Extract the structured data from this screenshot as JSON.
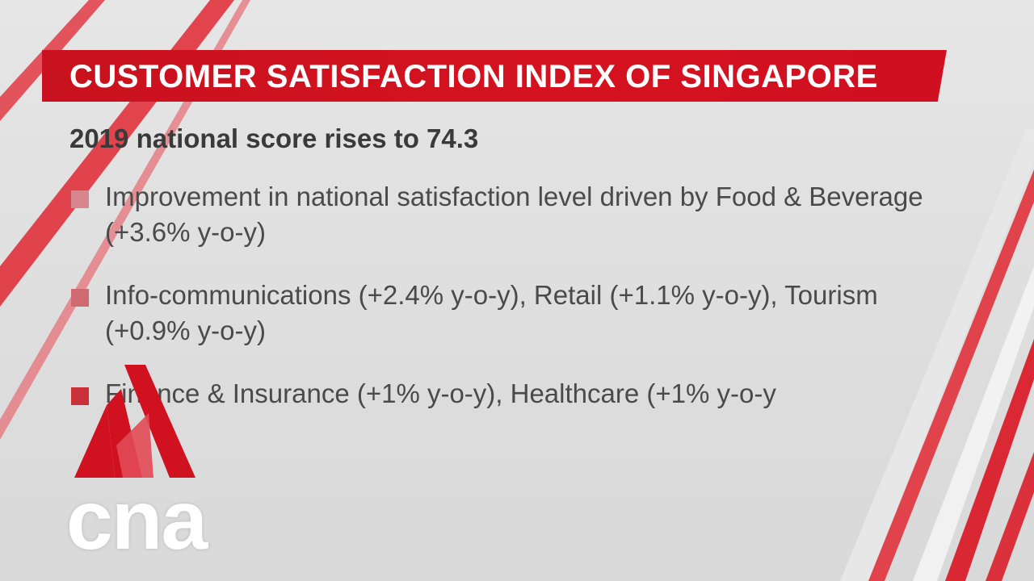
{
  "title": "CUSTOMER SATISFACTION INDEX OF SINGAPORE",
  "subtitle": "2019 national score rises to 74.3",
  "bullets": [
    {
      "text": "Improvement in national satisfaction level driven by Food & Beverage (+3.6% y-o-y)"
    },
    {
      "text": "Info-communications (+2.4% y-o-y), Retail (+1.1% y-o-y), Tourism (+0.9% y-o-y)"
    },
    {
      "text": "Finance & Insurance (+1% y-o-y), Healthcare (+1% y-o-y"
    }
  ],
  "logo": {
    "text": "cna",
    "icon": "cna-triangle-logo-icon"
  },
  "colors": {
    "accent": "#d5121f",
    "text": "#4a4a4a",
    "background": "#e2e2e2"
  }
}
